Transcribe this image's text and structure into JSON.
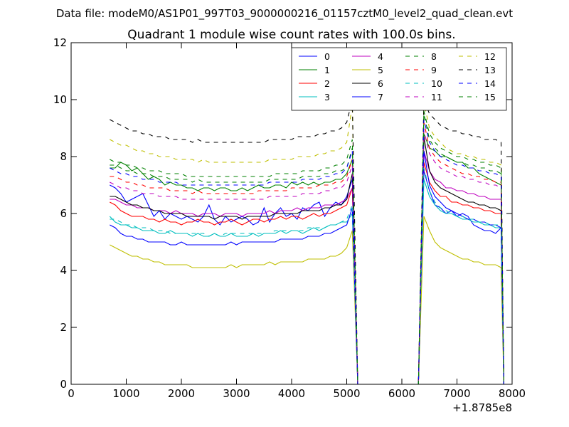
{
  "suptitle": "Data file: modeM0/AS1P01_997T03_9000000216_01157cztM0_level2_quad_clean.evt",
  "chart_data": {
    "type": "line",
    "title": "Quadrant 1 module wise count rates with 100.0s bins.",
    "xlabel": "",
    "ylabel": "",
    "x_offset_label": "+1.8785e8",
    "xlim": [
      0,
      8000
    ],
    "ylim": [
      0,
      12
    ],
    "xticks": [
      0,
      1000,
      2000,
      3000,
      4000,
      5000,
      6000,
      7000,
      8000
    ],
    "yticks": [
      0,
      2,
      4,
      6,
      8,
      10,
      12
    ],
    "grid": false,
    "legend": {
      "placement": "top-right",
      "columns": 4
    },
    "x_segments": [
      {
        "start": 700,
        "end": 5100,
        "step": 100
      },
      {
        "start": 5200,
        "end": 6300,
        "step": 100
      },
      {
        "start": 6400,
        "end": 7800,
        "step": 100
      },
      {
        "start": 7850,
        "end": 7850,
        "step": 100
      }
    ],
    "series": [
      {
        "name": "0",
        "color": "#0000ff",
        "dash": "solid",
        "base": [
          7.0,
          6.9,
          6.7,
          6.4,
          6.5,
          6.6,
          6.7,
          6.3,
          5.9,
          6.1,
          5.8,
          6.0,
          5.9,
          5.8,
          5.9,
          5.8,
          5.7,
          5.9,
          6.3,
          5.8,
          5.6,
          5.9,
          5.7,
          5.8,
          5.9,
          5.8,
          5.6,
          5.7,
          6.2,
          5.7,
          6.0,
          6.2,
          5.9,
          6.0,
          5.8,
          6.2,
          6.1,
          6.3,
          6.4,
          5.9,
          6.2,
          6.4,
          6.3,
          6.6,
          7.2
        ],
        "tail": [
          7.5,
          6.8,
          6.3,
          6.2,
          6.0,
          6.1,
          5.9,
          6.0,
          5.9,
          5.6,
          5.5,
          5.4,
          5.4,
          5.3,
          5.5
        ]
      },
      {
        "name": "1",
        "color": "#008000",
        "dash": "solid",
        "base": [
          7.6,
          7.6,
          7.8,
          7.7,
          7.5,
          7.6,
          7.4,
          7.2,
          7.3,
          7.2,
          7.0,
          7.1,
          7.0,
          7.0,
          6.9,
          6.9,
          6.8,
          6.9,
          6.9,
          6.8,
          6.9,
          6.9,
          6.8,
          6.8,
          6.9,
          6.8,
          6.9,
          7.0,
          6.9,
          6.9,
          7.0,
          7.0,
          6.9,
          7.1,
          7.0,
          7.1,
          7.0,
          7.1,
          7.0,
          7.1,
          7.1,
          7.2,
          7.2,
          7.4,
          7.9
        ],
        "tail": [
          8.8,
          8.3,
          8.2,
          8.0,
          8.0,
          7.9,
          7.8,
          7.8,
          7.6,
          7.6,
          7.4,
          7.3,
          7.2,
          7.1,
          7.0
        ]
      },
      {
        "name": "2",
        "color": "#ff0000",
        "dash": "solid",
        "base": [
          6.4,
          6.3,
          6.1,
          6.0,
          5.9,
          5.9,
          5.9,
          5.8,
          5.8,
          5.7,
          5.8,
          5.7,
          5.7,
          5.6,
          5.7,
          5.7,
          5.8,
          5.7,
          5.7,
          5.6,
          5.7,
          5.7,
          5.8,
          5.7,
          5.6,
          5.7,
          5.8,
          5.8,
          5.7,
          5.8,
          5.8,
          5.9,
          5.8,
          5.9,
          5.9,
          5.8,
          5.9,
          6.0,
          5.9,
          6.0,
          6.0,
          6.1,
          6.2,
          6.3,
          6.9
        ],
        "tail": [
          7.8,
          7.1,
          6.8,
          6.6,
          6.6,
          6.4,
          6.4,
          6.3,
          6.3,
          6.2,
          6.2,
          6.1,
          6.1,
          6.0,
          6.0
        ]
      },
      {
        "name": "3",
        "color": "#00bfbf",
        "dash": "solid",
        "base": [
          5.9,
          5.7,
          5.6,
          5.6,
          5.5,
          5.5,
          5.4,
          5.4,
          5.4,
          5.3,
          5.3,
          5.4,
          5.3,
          5.3,
          5.3,
          5.2,
          5.3,
          5.2,
          5.2,
          5.3,
          5.2,
          5.2,
          5.3,
          5.2,
          5.2,
          5.2,
          5.3,
          5.2,
          5.3,
          5.3,
          5.3,
          5.4,
          5.3,
          5.4,
          5.4,
          5.3,
          5.4,
          5.5,
          5.4,
          5.5,
          5.6,
          5.6,
          5.7,
          5.7,
          6.0
        ],
        "tail": [
          7.2,
          6.6,
          6.3,
          6.1,
          6.0,
          6.0,
          5.9,
          5.8,
          5.8,
          5.7,
          5.7,
          5.6,
          5.6,
          5.5,
          5.5
        ]
      },
      {
        "name": "4",
        "color": "#bf00bf",
        "dash": "solid",
        "base": [
          6.5,
          6.5,
          6.4,
          6.3,
          6.3,
          6.2,
          6.2,
          6.2,
          6.1,
          6.1,
          6.1,
          6.0,
          6.1,
          6.0,
          6.0,
          6.0,
          5.9,
          6.0,
          6.0,
          6.0,
          5.9,
          6.0,
          6.0,
          6.0,
          5.9,
          6.0,
          6.0,
          6.0,
          6.0,
          6.1,
          6.0,
          6.1,
          6.1,
          6.1,
          6.2,
          6.1,
          6.2,
          6.2,
          6.2,
          6.3,
          6.3,
          6.3,
          6.4,
          6.5,
          6.9
        ],
        "tail": [
          8.2,
          7.5,
          7.2,
          7.1,
          6.9,
          6.9,
          6.8,
          6.8,
          6.7,
          6.7,
          6.6,
          6.6,
          6.5,
          6.5,
          6.5
        ]
      },
      {
        "name": "5",
        "color": "#bfbf00",
        "dash": "solid",
        "base": [
          4.9,
          4.8,
          4.7,
          4.6,
          4.5,
          4.5,
          4.4,
          4.4,
          4.3,
          4.3,
          4.2,
          4.2,
          4.2,
          4.2,
          4.2,
          4.1,
          4.1,
          4.1,
          4.1,
          4.1,
          4.1,
          4.1,
          4.2,
          4.1,
          4.2,
          4.2,
          4.2,
          4.2,
          4.2,
          4.3,
          4.2,
          4.3,
          4.3,
          4.3,
          4.3,
          4.3,
          4.4,
          4.4,
          4.4,
          4.4,
          4.5,
          4.5,
          4.6,
          4.8,
          5.4
        ],
        "tail": [
          5.9,
          5.4,
          5.0,
          4.8,
          4.7,
          4.6,
          4.5,
          4.4,
          4.4,
          4.3,
          4.3,
          4.2,
          4.2,
          4.2,
          4.1
        ]
      },
      {
        "name": "6",
        "color": "#000000",
        "dash": "solid",
        "base": [
          6.6,
          6.6,
          6.5,
          6.4,
          6.3,
          6.3,
          6.2,
          6.2,
          6.1,
          6.1,
          6.0,
          6.0,
          6.0,
          6.0,
          5.9,
          5.9,
          5.9,
          5.9,
          5.9,
          5.8,
          5.9,
          5.9,
          5.9,
          5.9,
          5.8,
          5.9,
          5.9,
          5.9,
          5.9,
          5.9,
          6.0,
          6.0,
          6.0,
          6.0,
          6.0,
          6.1,
          6.1,
          6.1,
          6.1,
          6.2,
          6.2,
          6.3,
          6.3,
          6.5,
          7.4
        ],
        "tail": [
          8.7,
          7.5,
          7.1,
          6.9,
          6.8,
          6.7,
          6.6,
          6.5,
          6.4,
          6.4,
          6.3,
          6.3,
          6.2,
          6.2,
          6.1
        ]
      },
      {
        "name": "7",
        "color": "#0000ff",
        "dash": "solid",
        "base": [
          5.6,
          5.5,
          5.3,
          5.2,
          5.2,
          5.1,
          5.1,
          5.0,
          5.0,
          5.0,
          5.0,
          4.9,
          4.9,
          5.0,
          4.9,
          4.9,
          4.9,
          4.9,
          4.9,
          4.9,
          4.9,
          4.9,
          5.0,
          4.9,
          5.0,
          5.0,
          5.0,
          5.0,
          5.0,
          5.0,
          5.0,
          5.1,
          5.1,
          5.1,
          5.1,
          5.1,
          5.2,
          5.2,
          5.2,
          5.3,
          5.3,
          5.4,
          5.5,
          5.6,
          6.2
        ],
        "tail": [
          8.2,
          7.0,
          6.6,
          6.4,
          6.2,
          6.1,
          6.0,
          5.9,
          5.8,
          5.8,
          5.7,
          5.7,
          5.6,
          5.6,
          5.5
        ]
      },
      {
        "name": "8",
        "color": "#008000",
        "dash": "dashed",
        "base": [
          7.7,
          7.7,
          7.6,
          7.5,
          7.5,
          7.4,
          7.4,
          7.4,
          7.3,
          7.3,
          7.3,
          7.2,
          7.2,
          7.2,
          7.2,
          7.1,
          7.2,
          7.1,
          7.1,
          7.1,
          7.1,
          7.1,
          7.1,
          7.1,
          7.1,
          7.1,
          7.1,
          7.1,
          7.1,
          7.2,
          7.2,
          7.2,
          7.2,
          7.2,
          7.2,
          7.3,
          7.3,
          7.3,
          7.3,
          7.4,
          7.4,
          7.5,
          7.5,
          7.6,
          8.3
        ],
        "tail": [
          9.5,
          8.6,
          8.3,
          8.1,
          8.0,
          7.9,
          7.8,
          7.8,
          7.7,
          7.7,
          7.6,
          7.6,
          7.5,
          7.5,
          7.4
        ]
      },
      {
        "name": "9",
        "color": "#ff0000",
        "dash": "dashed",
        "base": [
          7.3,
          7.3,
          7.2,
          7.1,
          7.1,
          7.0,
          7.0,
          6.9,
          6.9,
          6.9,
          6.9,
          6.8,
          6.8,
          6.8,
          6.8,
          6.7,
          6.8,
          6.7,
          6.7,
          6.7,
          6.7,
          6.7,
          6.7,
          6.7,
          6.7,
          6.7,
          6.7,
          6.8,
          6.8,
          6.8,
          6.8,
          6.8,
          6.8,
          6.9,
          6.9,
          6.9,
          6.9,
          6.9,
          7.0,
          7.0,
          7.0,
          7.1,
          7.1,
          7.3,
          7.9
        ],
        "tail": [
          9.2,
          8.3,
          8.0,
          7.8,
          7.7,
          7.6,
          7.5,
          7.4,
          7.4,
          7.3,
          7.3,
          7.2,
          7.2,
          7.1,
          7.1
        ]
      },
      {
        "name": "10",
        "color": "#00bfbf",
        "dash": "dashed",
        "base": [
          5.8,
          5.8,
          5.7,
          5.6,
          5.6,
          5.5,
          5.5,
          5.5,
          5.4,
          5.4,
          5.4,
          5.3,
          5.3,
          5.3,
          5.3,
          5.3,
          5.3,
          5.3,
          5.2,
          5.3,
          5.2,
          5.3,
          5.3,
          5.3,
          5.3,
          5.3,
          5.3,
          5.3,
          5.3,
          5.3,
          5.4,
          5.4,
          5.4,
          5.4,
          5.4,
          5.4,
          5.5,
          5.5,
          5.5,
          5.5,
          5.6,
          5.6,
          5.7,
          5.8,
          6.3
        ],
        "tail": [
          7.6,
          6.8,
          6.4,
          6.2,
          6.1,
          6.0,
          5.9,
          5.9,
          5.8,
          5.8,
          5.7,
          5.7,
          5.6,
          5.6,
          5.6
        ]
      },
      {
        "name": "11",
        "color": "#bf00bf",
        "dash": "dashed",
        "base": [
          7.1,
          7.0,
          6.9,
          6.9,
          6.8,
          6.8,
          6.7,
          6.7,
          6.7,
          6.6,
          6.6,
          6.6,
          6.6,
          6.5,
          6.5,
          6.5,
          6.5,
          6.5,
          6.5,
          6.5,
          6.5,
          6.5,
          6.5,
          6.5,
          6.5,
          6.5,
          6.5,
          6.5,
          6.5,
          6.6,
          6.6,
          6.6,
          6.6,
          6.6,
          6.6,
          6.7,
          6.7,
          6.7,
          6.7,
          6.8,
          6.8,
          6.9,
          6.9,
          7.1,
          7.7
        ],
        "tail": [
          8.9,
          8.1,
          7.8,
          7.6,
          7.5,
          7.4,
          7.3,
          7.3,
          7.2,
          7.2,
          7.1,
          7.1,
          7.0,
          7.0,
          6.9
        ]
      },
      {
        "name": "12",
        "color": "#bfbf00",
        "dash": "dashed",
        "base": [
          8.6,
          8.5,
          8.4,
          8.4,
          8.3,
          8.2,
          8.2,
          8.1,
          8.1,
          8.0,
          8.0,
          8.0,
          7.9,
          7.9,
          7.9,
          7.9,
          7.8,
          7.9,
          7.8,
          7.8,
          7.8,
          7.8,
          7.8,
          7.8,
          7.8,
          7.8,
          7.8,
          7.8,
          7.8,
          7.9,
          7.9,
          7.9,
          7.9,
          7.9,
          8.0,
          8.0,
          8.0,
          8.0,
          8.1,
          8.1,
          8.2,
          8.2,
          8.3,
          8.5,
          9.8
        ],
        "tail": [
          9.9,
          9.0,
          8.7,
          8.5,
          8.3,
          8.2,
          8.1,
          8.1,
          8.0,
          8.0,
          7.9,
          7.9,
          7.8,
          7.8,
          7.7
        ]
      },
      {
        "name": "13",
        "color": "#000000",
        "dash": "dashed",
        "base": [
          9.3,
          9.2,
          9.1,
          9.0,
          8.9,
          8.9,
          8.8,
          8.8,
          8.7,
          8.7,
          8.7,
          8.6,
          8.6,
          8.6,
          8.6,
          8.5,
          8.6,
          8.5,
          8.5,
          8.5,
          8.5,
          8.5,
          8.5,
          8.5,
          8.5,
          8.5,
          8.5,
          8.5,
          8.5,
          8.6,
          8.6,
          8.6,
          8.6,
          8.6,
          8.7,
          8.7,
          8.7,
          8.7,
          8.8,
          8.8,
          8.9,
          8.9,
          9.0,
          9.2,
          10.0
        ],
        "tail": [
          10.0,
          9.5,
          9.3,
          9.1,
          9.0,
          8.9,
          8.9,
          8.8,
          8.8,
          8.7,
          8.7,
          8.6,
          8.6,
          8.6,
          8.5
        ]
      },
      {
        "name": "14",
        "color": "#0000ff",
        "dash": "dashed",
        "base": [
          7.6,
          7.5,
          7.4,
          7.4,
          7.3,
          7.3,
          7.2,
          7.2,
          7.2,
          7.1,
          7.1,
          7.1,
          7.1,
          7.0,
          7.0,
          7.0,
          7.0,
          7.0,
          7.0,
          7.0,
          7.0,
          7.0,
          7.0,
          7.0,
          7.0,
          7.0,
          7.0,
          7.0,
          7.0,
          7.1,
          7.1,
          7.1,
          7.1,
          7.1,
          7.1,
          7.2,
          7.2,
          7.2,
          7.2,
          7.3,
          7.3,
          7.4,
          7.4,
          7.6,
          8.2
        ],
        "tail": [
          9.3,
          8.5,
          8.2,
          8.0,
          7.9,
          7.8,
          7.7,
          7.7,
          7.6,
          7.6,
          7.5,
          7.5,
          7.4,
          7.4,
          7.3
        ]
      },
      {
        "name": "15",
        "color": "#008000",
        "dash": "dashed",
        "base": [
          7.9,
          7.8,
          7.8,
          7.7,
          7.7,
          7.6,
          7.6,
          7.5,
          7.5,
          7.5,
          7.4,
          7.4,
          7.4,
          7.4,
          7.3,
          7.3,
          7.3,
          7.3,
          7.3,
          7.3,
          7.3,
          7.3,
          7.3,
          7.3,
          7.3,
          7.3,
          7.3,
          7.3,
          7.3,
          7.3,
          7.4,
          7.4,
          7.4,
          7.4,
          7.4,
          7.5,
          7.5,
          7.5,
          7.5,
          7.6,
          7.6,
          7.7,
          7.7,
          7.9,
          8.6
        ],
        "tail": [
          9.6,
          8.8,
          8.5,
          8.3,
          8.2,
          8.1,
          8.0,
          8.0,
          7.9,
          7.9,
          7.8,
          7.8,
          7.7,
          7.7,
          7.6
        ]
      }
    ]
  }
}
